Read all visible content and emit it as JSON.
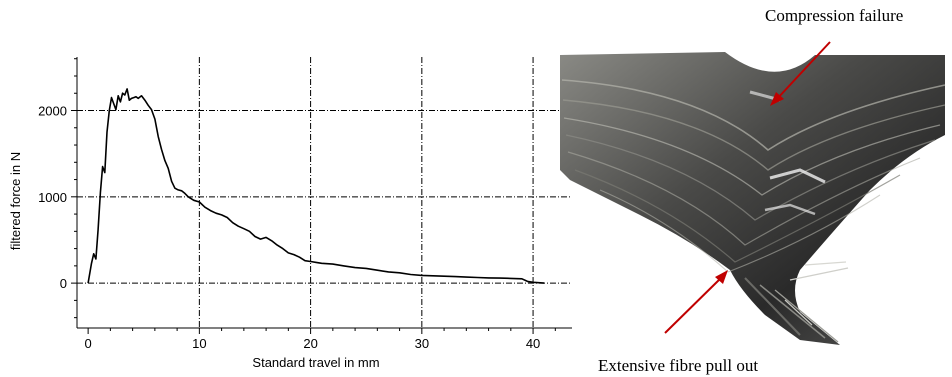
{
  "chart_data": {
    "type": "line",
    "xlabel": "Standard travel in mm",
    "ylabel": "filtered force in N",
    "xlim": [
      -1,
      43.5
    ],
    "ylim": [
      -520,
      2620
    ],
    "xticks": [
      0,
      10,
      20,
      30,
      40
    ],
    "yticks": [
      0,
      1000,
      2000
    ],
    "grid": true,
    "series": [
      {
        "x": [
          0,
          0.3,
          0.5,
          0.7,
          0.9,
          1.1,
          1.3,
          1.5,
          1.7,
          1.9,
          2.1,
          2.3,
          2.5,
          2.7,
          2.9,
          3.1,
          3.3,
          3.5,
          3.7,
          3.9,
          4.1,
          4.3,
          4.5,
          4.8,
          5.1,
          5.4,
          5.7,
          6.0,
          6.3,
          6.6,
          6.9,
          7.2,
          7.5,
          7.8,
          8.1,
          8.4,
          8.7,
          9.0,
          9.5,
          10.0,
          10.5,
          11.0,
          11.5,
          12.0,
          12.5,
          13.0,
          13.5,
          14.0,
          14.5,
          15.0,
          15.5,
          16.0,
          16.5,
          17.0,
          17.5,
          18.0,
          18.5,
          19.0,
          19.5,
          20.0,
          20.5,
          21.0,
          22.0,
          23.0,
          24.0,
          25.0,
          26.0,
          27.0,
          28.0,
          29.0,
          30.0,
          31.0,
          32.0,
          33.0,
          34.0,
          35.0,
          36.0,
          37.0,
          38.0,
          39.0,
          39.5,
          40.0,
          40.5,
          41.0
        ],
        "y": [
          0,
          230,
          340,
          280,
          620,
          1050,
          1350,
          1280,
          1750,
          2000,
          2150,
          2080,
          2010,
          2170,
          2100,
          2200,
          2180,
          2250,
          2120,
          2140,
          2150,
          2160,
          2140,
          2170,
          2120,
          2060,
          2010,
          1900,
          1700,
          1550,
          1420,
          1330,
          1180,
          1100,
          1080,
          1070,
          1040,
          1000,
          960,
          940,
          880,
          840,
          810,
          790,
          760,
          700,
          660,
          630,
          600,
          540,
          510,
          530,
          490,
          440,
          400,
          350,
          330,
          300,
          260,
          250,
          240,
          230,
          220,
          200,
          180,
          170,
          150,
          130,
          120,
          100,
          90,
          85,
          80,
          75,
          70,
          65,
          60,
          58,
          55,
          50,
          20,
          10,
          5,
          0
        ]
      }
    ]
  },
  "photo": {
    "label_top": "Compression failure",
    "label_bottom": "Extensive fibre pull out",
    "arrow_color": "#c00000"
  }
}
